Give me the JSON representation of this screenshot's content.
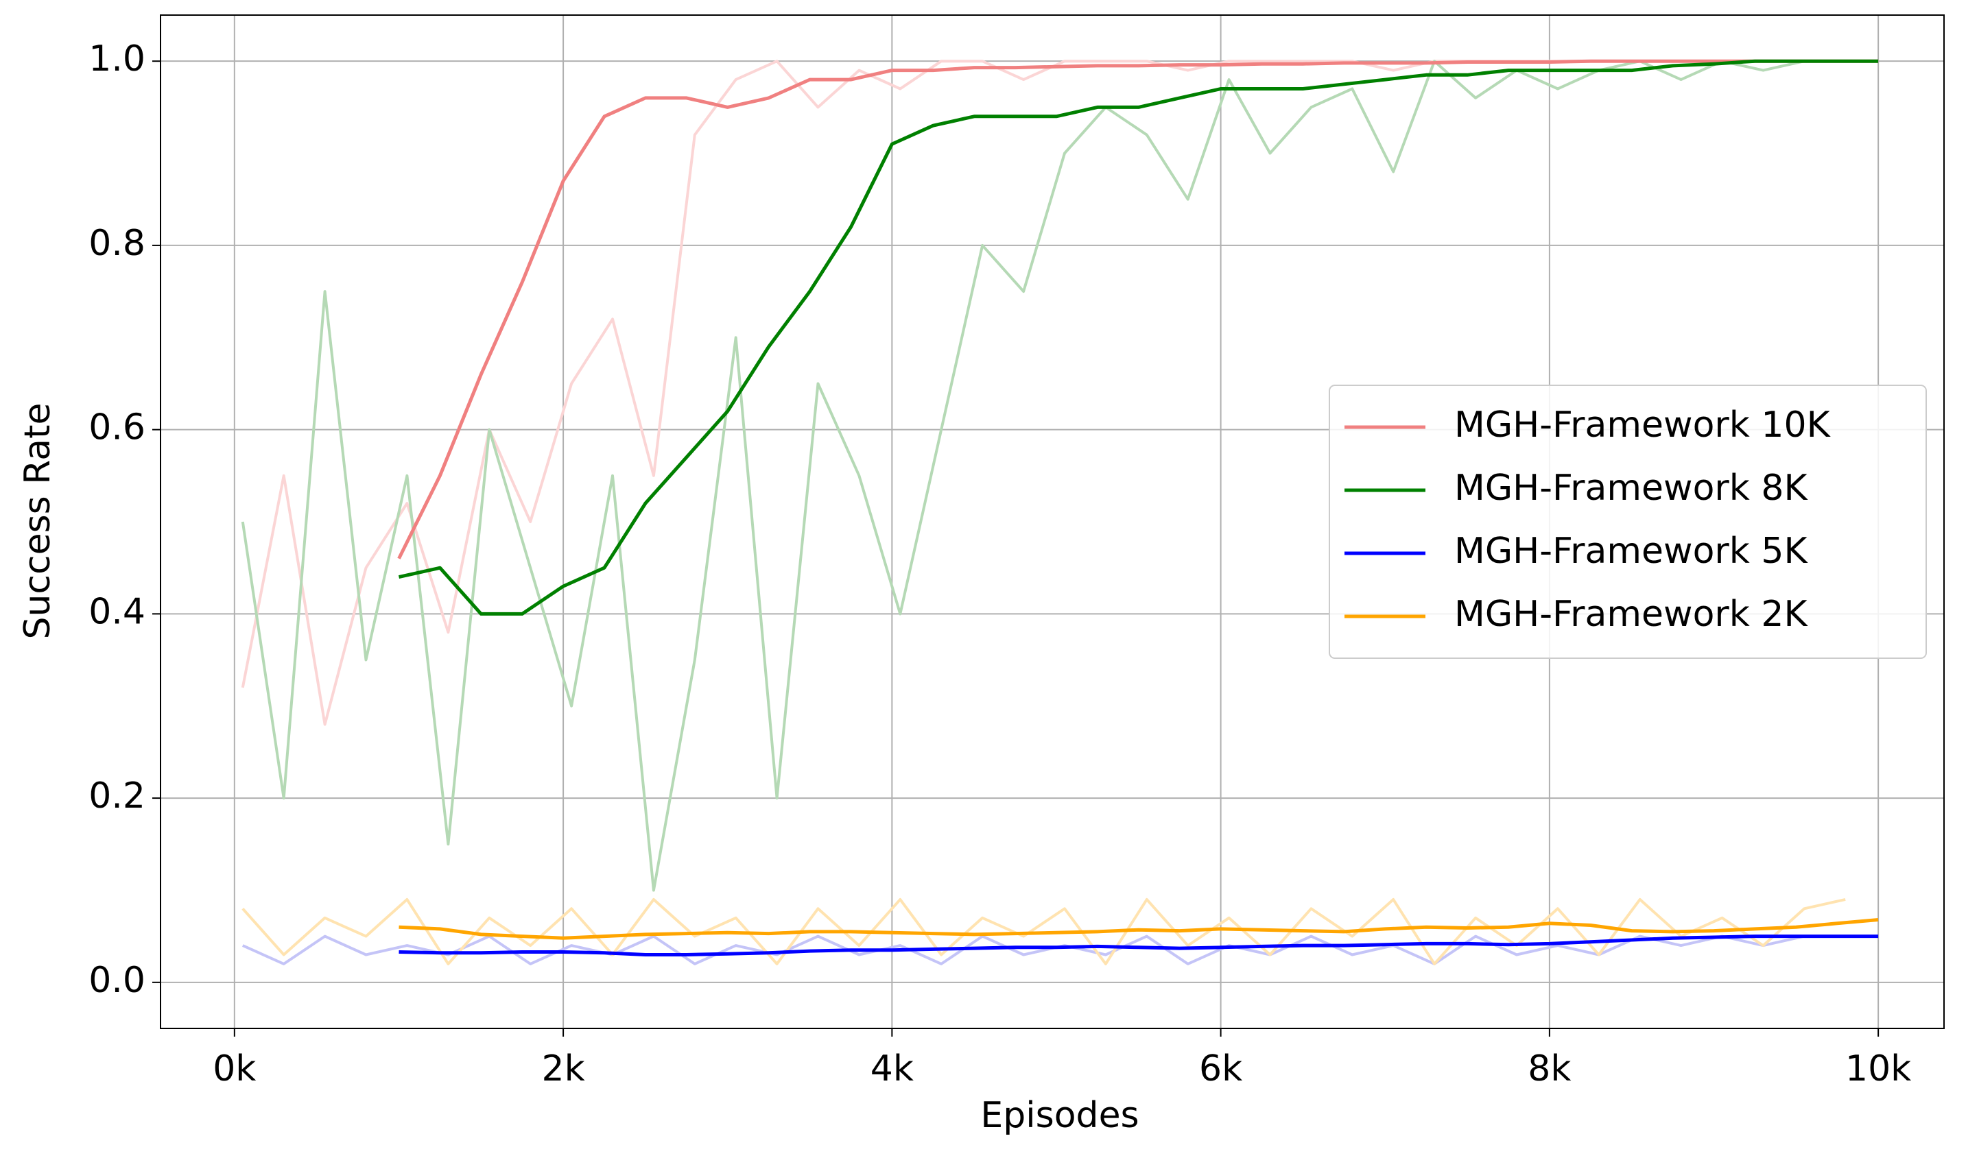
{
  "chart_data": {
    "type": "line",
    "xlabel": "Episodes",
    "ylabel": "Success Rate",
    "xlim": [
      -450,
      10400
    ],
    "ylim": [
      -0.05,
      1.05
    ],
    "xticks": [
      {
        "value": 0,
        "label": "0k"
      },
      {
        "value": 2000,
        "label": "2k"
      },
      {
        "value": 4000,
        "label": "4k"
      },
      {
        "value": 6000,
        "label": "6k"
      },
      {
        "value": 8000,
        "label": "8k"
      },
      {
        "value": 10000,
        "label": "10k"
      }
    ],
    "yticks": [
      {
        "value": 0,
        "label": "0.0"
      },
      0.2,
      0.4,
      0.6,
      0.8,
      {
        "value": 1,
        "label": "1.0"
      }
    ],
    "grid": true,
    "legend": "center right",
    "x": [
      1000,
      1250,
      1500,
      1750,
      2000,
      2250,
      2500,
      2750,
      3000,
      3250,
      3500,
      3750,
      4000,
      4250,
      4500,
      4750,
      5000,
      5250,
      5500,
      5750,
      6000,
      6250,
      6500,
      6750,
      7000,
      7250,
      7500,
      7750,
      8000,
      8250,
      8500,
      8750,
      9000,
      9250,
      9500,
      9750,
      10000
    ],
    "series": [
      {
        "name": "MGH-Framework 10K",
        "color": "#f08080",
        "values": [
          0.46,
          0.55,
          0.66,
          0.76,
          0.87,
          0.94,
          0.96,
          0.96,
          0.95,
          0.96,
          0.98,
          0.98,
          0.99,
          0.99,
          0.993,
          0.993,
          0.994,
          0.995,
          0.995,
          0.996,
          0.996,
          0.997,
          0.997,
          0.998,
          0.998,
          0.998,
          0.999,
          0.999,
          0.999,
          1.0,
          1.0,
          1.0,
          1.0,
          1.0,
          1.0,
          1.0,
          1.0
        ]
      },
      {
        "name": "MGH-Framework 8K",
        "color": "#008000",
        "values": [
          0.44,
          0.45,
          0.4,
          0.4,
          0.43,
          0.45,
          0.52,
          0.57,
          0.62,
          0.69,
          0.75,
          0.82,
          0.91,
          0.93,
          0.94,
          0.94,
          0.94,
          0.95,
          0.95,
          0.96,
          0.97,
          0.97,
          0.97,
          0.975,
          0.98,
          0.985,
          0.985,
          0.99,
          0.99,
          0.99,
          0.99,
          0.995,
          0.997,
          1.0,
          1.0,
          1.0,
          1.0
        ]
      },
      {
        "name": "MGH-Framework 5K",
        "color": "#0000ff",
        "values": [
          0.033,
          0.032,
          0.032,
          0.033,
          0.033,
          0.032,
          0.03,
          0.03,
          0.031,
          0.032,
          0.034,
          0.035,
          0.035,
          0.036,
          0.037,
          0.038,
          0.038,
          0.039,
          0.038,
          0.037,
          0.038,
          0.039,
          0.04,
          0.04,
          0.041,
          0.042,
          0.042,
          0.041,
          0.042,
          0.044,
          0.046,
          0.048,
          0.049,
          0.05,
          0.05,
          0.05,
          0.05
        ]
      },
      {
        "name": "MGH-Framework 2K",
        "color": "#ffa500",
        "values": [
          0.06,
          0.058,
          0.052,
          0.05,
          0.048,
          0.05,
          0.052,
          0.053,
          0.054,
          0.053,
          0.055,
          0.055,
          0.054,
          0.053,
          0.052,
          0.053,
          0.054,
          0.055,
          0.057,
          0.056,
          0.058,
          0.057,
          0.056,
          0.055,
          0.058,
          0.06,
          0.059,
          0.06,
          0.064,
          0.062,
          0.056,
          0.055,
          0.056,
          0.058,
          0.06,
          0.064,
          0.068
        ]
      }
    ],
    "faint_x": [
      50,
      300,
      550,
      800,
      1050,
      1300,
      1550,
      1800,
      2050,
      2300,
      2550,
      2800,
      3050,
      3300,
      3550,
      3800,
      4050,
      4300,
      4550,
      4800,
      5050,
      5300,
      5550,
      5800,
      6050,
      6300,
      6550,
      6800,
      7050,
      7300,
      7550,
      7800,
      8050,
      8300,
      8550,
      8800,
      9050,
      9300,
      9550,
      9800
    ],
    "faint_series": [
      {
        "color": "#fbd5d5",
        "values": [
          0.32,
          0.55,
          0.28,
          0.45,
          0.52,
          0.38,
          0.6,
          0.5,
          0.65,
          0.72,
          0.55,
          0.92,
          0.98,
          1.0,
          0.95,
          0.99,
          0.97,
          1.0,
          1.0,
          0.98,
          1.0,
          1.0,
          1.0,
          0.99,
          1.0,
          1.0,
          1.0,
          1.0,
          0.99,
          1.0,
          1.0,
          1.0,
          1.0,
          1.0,
          1.0,
          1.0,
          1.0,
          1.0,
          1.0,
          1.0
        ]
      },
      {
        "color": "#b5d9b5",
        "values": [
          0.5,
          0.2,
          0.75,
          0.35,
          0.55,
          0.15,
          0.6,
          0.45,
          0.3,
          0.55,
          0.1,
          0.35,
          0.7,
          0.2,
          0.65,
          0.55,
          0.4,
          0.6,
          0.8,
          0.75,
          0.9,
          0.95,
          0.92,
          0.85,
          0.98,
          0.9,
          0.95,
          0.97,
          0.88,
          1.0,
          0.96,
          0.99,
          0.97,
          0.99,
          1.0,
          0.98,
          1.0,
          0.99,
          1.0,
          1.0
        ]
      },
      {
        "color": "#c4c4f7",
        "values": [
          0.04,
          0.02,
          0.05,
          0.03,
          0.04,
          0.03,
          0.05,
          0.02,
          0.04,
          0.03,
          0.05,
          0.02,
          0.04,
          0.03,
          0.05,
          0.03,
          0.04,
          0.02,
          0.05,
          0.03,
          0.04,
          0.03,
          0.05,
          0.02,
          0.04,
          0.03,
          0.05,
          0.03,
          0.04,
          0.02,
          0.05,
          0.03,
          0.04,
          0.03,
          0.05,
          0.04,
          0.05,
          0.04,
          0.05,
          0.05
        ]
      },
      {
        "color": "#ffe3b0",
        "values": [
          0.08,
          0.03,
          0.07,
          0.05,
          0.09,
          0.02,
          0.07,
          0.04,
          0.08,
          0.03,
          0.09,
          0.05,
          0.07,
          0.02,
          0.08,
          0.04,
          0.09,
          0.03,
          0.07,
          0.05,
          0.08,
          0.02,
          0.09,
          0.04,
          0.07,
          0.03,
          0.08,
          0.05,
          0.09,
          0.02,
          0.07,
          0.04,
          0.08,
          0.03,
          0.09,
          0.05,
          0.07,
          0.04,
          0.08,
          0.09
        ]
      }
    ]
  }
}
